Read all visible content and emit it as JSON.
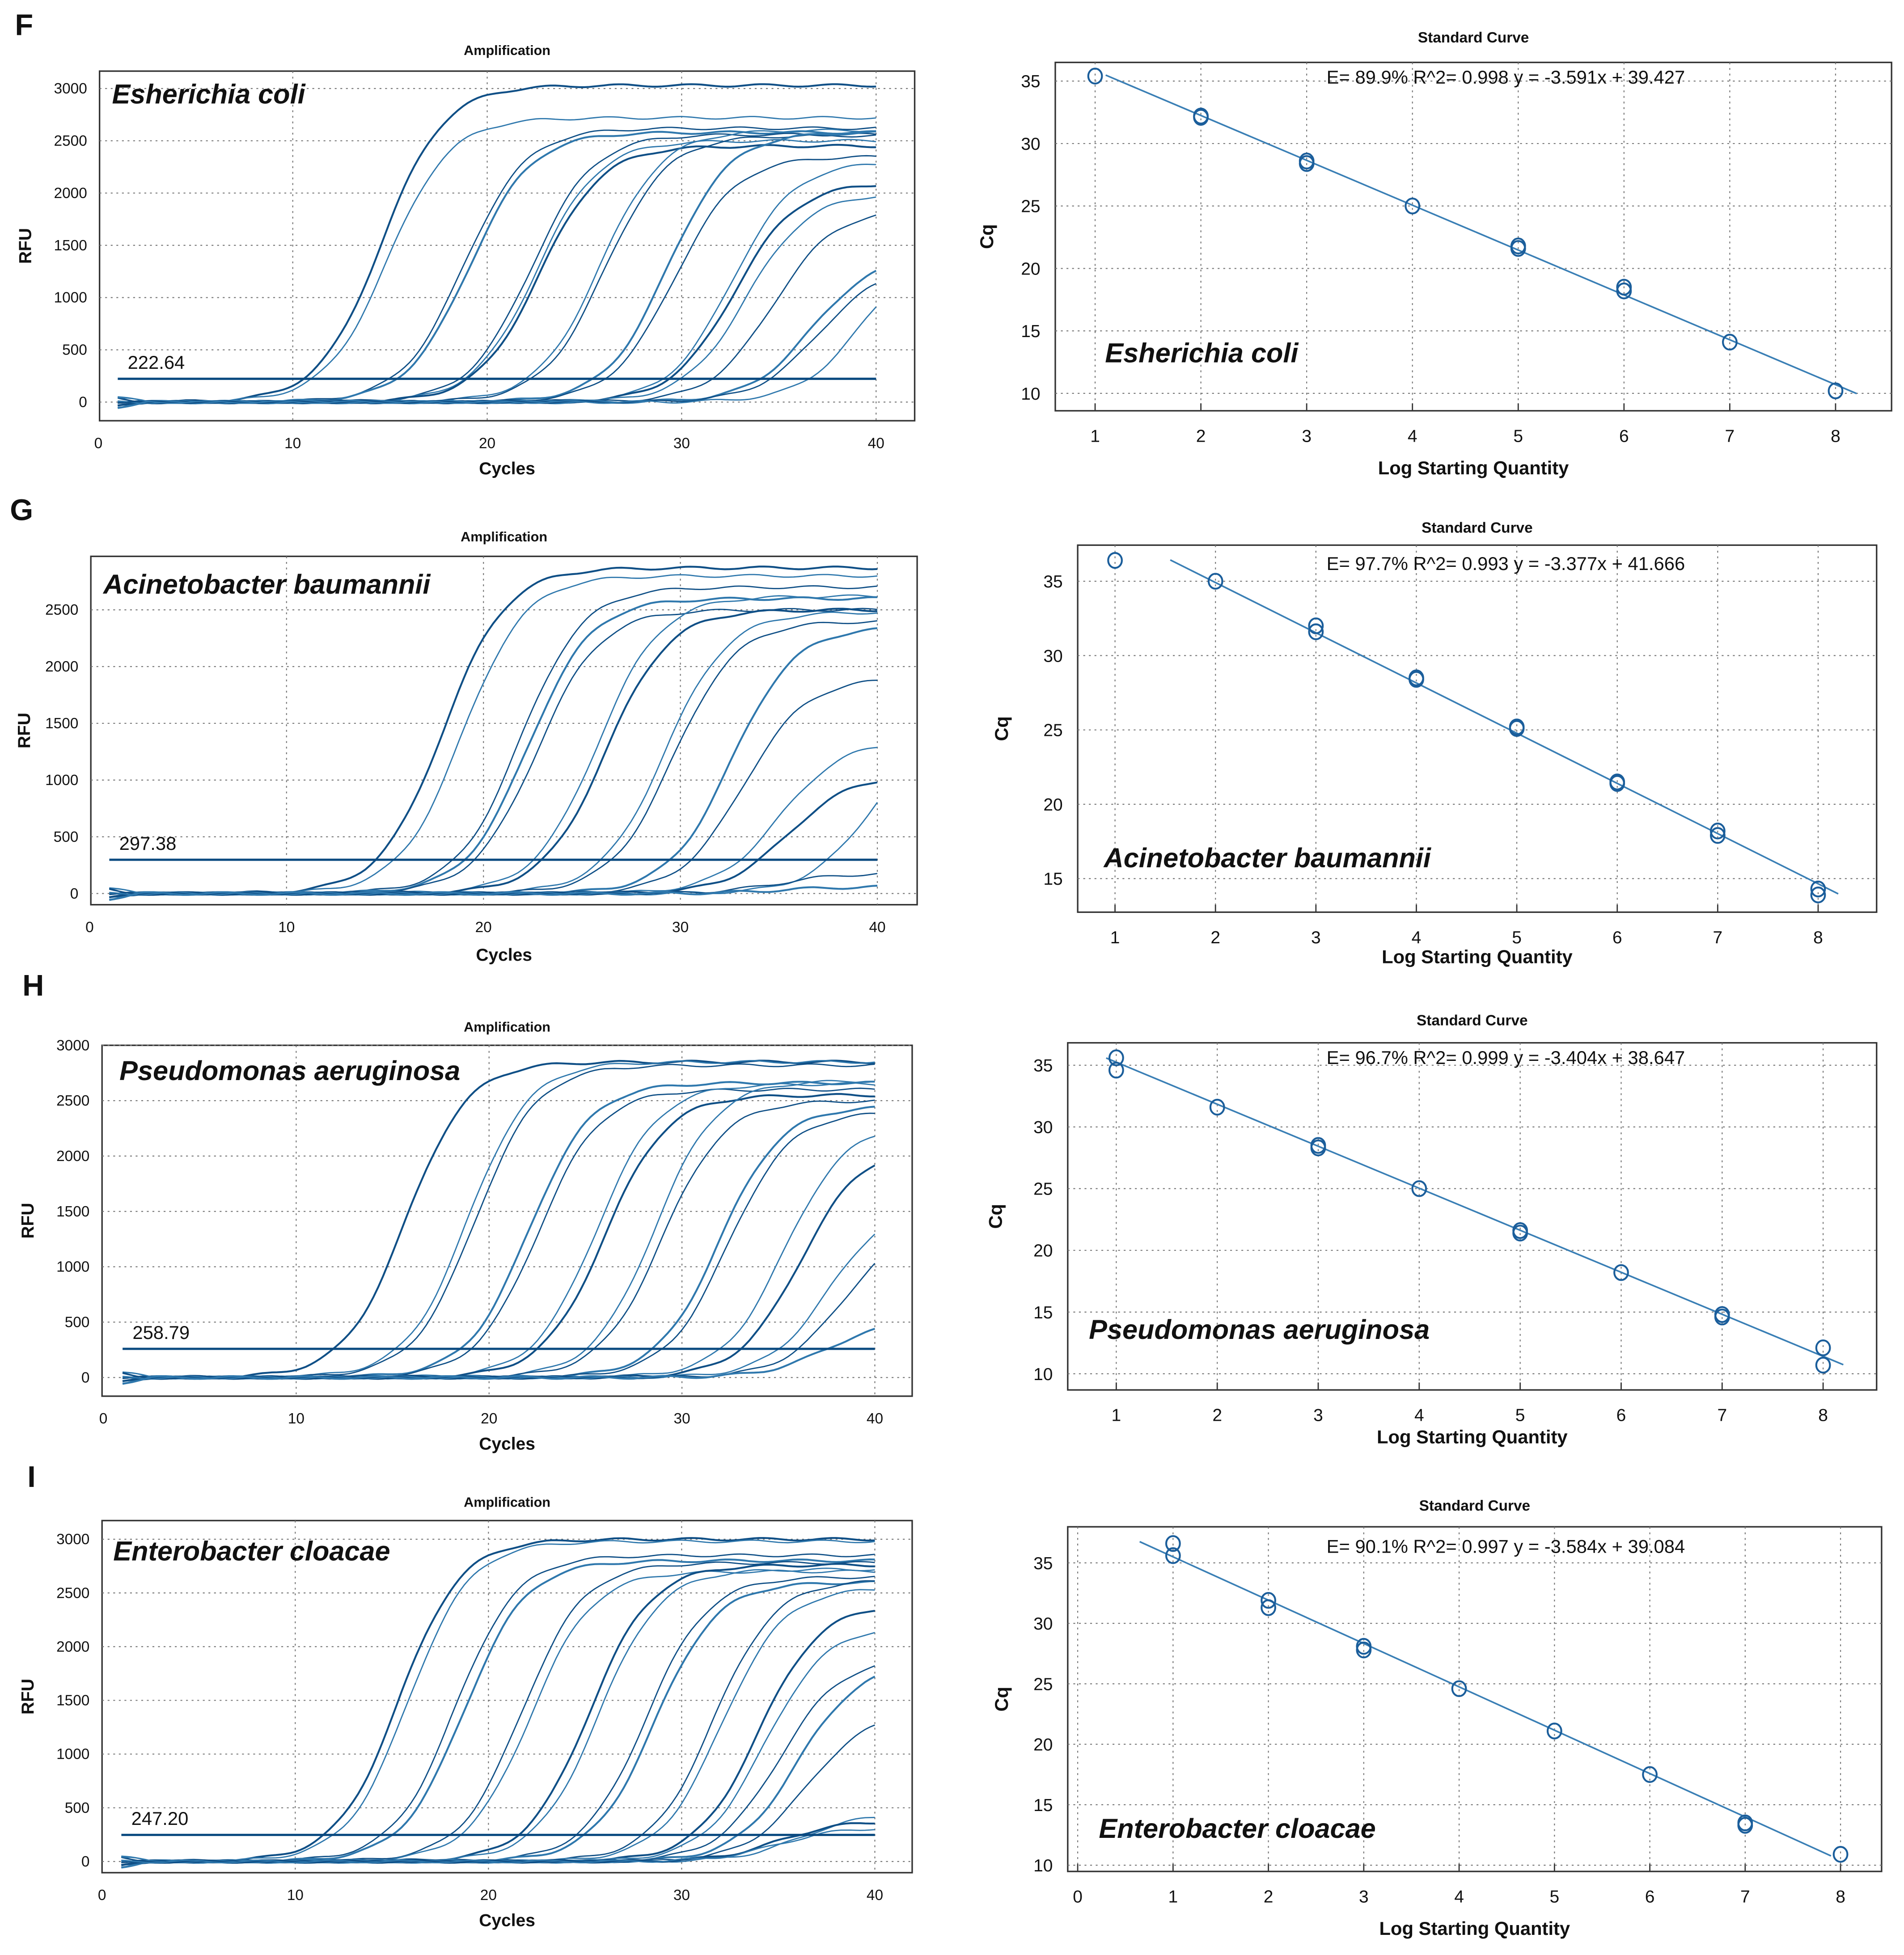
{
  "figure_panels": [
    "F",
    "G",
    "H",
    "I"
  ],
  "chart_data": [
    {
      "panel": "F",
      "type": "line",
      "title": "Amplification",
      "organism": "Esherichia coli",
      "xlabel": "Cycles",
      "ylabel": "RFU",
      "xlim": [
        0,
        40
      ],
      "xticks": [
        0,
        10,
        20,
        30,
        40
      ],
      "yticks": [
        0,
        500,
        1000,
        1500,
        2000,
        2500,
        3000
      ],
      "threshold": 222.64,
      "threshold_label": "222.64",
      "curves": [
        {
          "ct": 10.5,
          "plateau_rfu": 3030
        },
        {
          "ct": 11,
          "plateau_rfu": 2720
        },
        {
          "ct": 15,
          "plateau_rfu": 2620
        },
        {
          "ct": 15.3,
          "plateau_rfu": 2580
        },
        {
          "ct": 18.5,
          "plateau_rfu": 2560
        },
        {
          "ct": 18.8,
          "plateau_rfu": 2500
        },
        {
          "ct": 19,
          "plateau_rfu": 2450
        },
        {
          "ct": 22,
          "plateau_rfu": 2600
        },
        {
          "ct": 22.3,
          "plateau_rfu": 2550
        },
        {
          "ct": 25.5,
          "plateau_rfu": 2580
        },
        {
          "ct": 26,
          "plateau_rfu": 2350
        },
        {
          "ct": 29,
          "plateau_rfu": 2300
        },
        {
          "ct": 29.3,
          "plateau_rfu": 2100
        },
        {
          "ct": 30,
          "plateau_rfu": 2000
        },
        {
          "ct": 31.5,
          "plateau_rfu": 1850
        },
        {
          "ct": 34,
          "plateau_rfu": 1400
        },
        {
          "ct": 34.5,
          "plateau_rfu": 1300
        },
        {
          "ct": 36.5,
          "plateau_rfu": 1500
        }
      ]
    },
    {
      "panel": "F",
      "type": "scatter",
      "title": "Standard Curve",
      "organism": "Esherichia coli",
      "xlabel": "Log Starting Quantity",
      "ylabel": "Cq",
      "xticks": [
        1,
        2,
        3,
        4,
        5,
        6,
        7,
        8
      ],
      "yticks": [
        10,
        15,
        20,
        25,
        30,
        35
      ],
      "equation": "E= 89.9% R^2= 0.998  y = -3.591x + 39.427",
      "efficiency_pct": 89.9,
      "r2": 0.998,
      "slope": -3.591,
      "intercept": 39.427,
      "fit_x_range": [
        1.1,
        8.2
      ],
      "points": [
        [
          1,
          35.4
        ],
        [
          2,
          32.2
        ],
        [
          2,
          32.1
        ],
        [
          3,
          28.6
        ],
        [
          3,
          28.4
        ],
        [
          4,
          25.0
        ],
        [
          5,
          21.8
        ],
        [
          5,
          21.6
        ],
        [
          6,
          18.5
        ],
        [
          6,
          18.2
        ],
        [
          7,
          14.1
        ],
        [
          8,
          10.2
        ]
      ]
    },
    {
      "panel": "G",
      "type": "line",
      "title": "Amplification",
      "organism": "Acinetobacter baumannii",
      "xlabel": "Cycles",
      "ylabel": "RFU",
      "xlim": [
        0,
        40
      ],
      "xticks": [
        0,
        10,
        20,
        30,
        40
      ],
      "yticks": [
        0,
        500,
        1000,
        1500,
        2000,
        2500
      ],
      "threshold": 297.38,
      "threshold_label": "297.38",
      "curves": [
        {
          "ct": 14.5,
          "plateau_rfu": 2870
        },
        {
          "ct": 15.5,
          "plateau_rfu": 2800
        },
        {
          "ct": 18.5,
          "plateau_rfu": 2700
        },
        {
          "ct": 19,
          "plateau_rfu": 2600
        },
        {
          "ct": 19.5,
          "plateau_rfu": 2500
        },
        {
          "ct": 22.5,
          "plateau_rfu": 2620
        },
        {
          "ct": 23,
          "plateau_rfu": 2500
        },
        {
          "ct": 26,
          "plateau_rfu": 2480
        },
        {
          "ct": 26.5,
          "plateau_rfu": 2400
        },
        {
          "ct": 29.5,
          "plateau_rfu": 2350
        },
        {
          "ct": 30.5,
          "plateau_rfu": 1900
        },
        {
          "ct": 33,
          "plateau_rfu": 1350
        },
        {
          "ct": 34,
          "plateau_rfu": 1050
        },
        {
          "ct": 37.5,
          "plateau_rfu": 1500
        },
        {
          "ct": null,
          "plateau_rfu": 180
        },
        {
          "ct": null,
          "plateau_rfu": 60
        }
      ]
    },
    {
      "panel": "G",
      "type": "scatter",
      "title": "Standard Curve",
      "organism": "Acinetobacter baumannii",
      "xlabel": "Log Starting Quantity",
      "ylabel": "Cq",
      "xticks": [
        1,
        2,
        3,
        4,
        5,
        6,
        7,
        8
      ],
      "yticks": [
        15,
        20,
        25,
        30,
        35
      ],
      "equation": "E= 97.7% R^2= 0.993  y = -3.377x + 41.666",
      "efficiency_pct": 97.7,
      "r2": 0.993,
      "slope": -3.377,
      "intercept": 41.666,
      "fit_x_range": [
        1.55,
        8.2
      ],
      "points": [
        [
          1,
          36.4
        ],
        [
          2,
          35.0
        ],
        [
          3,
          32.0
        ],
        [
          3,
          31.6
        ],
        [
          4,
          28.5
        ],
        [
          4,
          28.4
        ],
        [
          5,
          25.2
        ],
        [
          5,
          25.1
        ],
        [
          6,
          21.5
        ],
        [
          6,
          21.4
        ],
        [
          7,
          18.2
        ],
        [
          7,
          17.9
        ],
        [
          8,
          14.3
        ],
        [
          8,
          13.9
        ]
      ]
    },
    {
      "panel": "H",
      "type": "line",
      "title": "Amplification",
      "organism": "Pseudomonas aeruginosa",
      "xlabel": "Cycles",
      "ylabel": "RFU",
      "xlim": [
        0,
        40
      ],
      "xticks": [
        0,
        10,
        20,
        30,
        40
      ],
      "yticks": [
        0,
        500,
        1000,
        1500,
        2000,
        2500,
        3000
      ],
      "threshold": 258.79,
      "threshold_label": "258.79",
      "curves": [
        {
          "ct": 12,
          "plateau_rfu": 2850
        },
        {
          "ct": 15.2,
          "plateau_rfu": 2850
        },
        {
          "ct": 15.6,
          "plateau_rfu": 2820
        },
        {
          "ct": 18.5,
          "plateau_rfu": 2660
        },
        {
          "ct": 19,
          "plateau_rfu": 2600
        },
        {
          "ct": 22,
          "plateau_rfu": 2650
        },
        {
          "ct": 22.5,
          "plateau_rfu": 2550
        },
        {
          "ct": 25,
          "plateau_rfu": 2680
        },
        {
          "ct": 25.5,
          "plateau_rfu": 2500
        },
        {
          "ct": 28.5,
          "plateau_rfu": 2450
        },
        {
          "ct": 29,
          "plateau_rfu": 2400
        },
        {
          "ct": 32,
          "plateau_rfu": 2300
        },
        {
          "ct": 33,
          "plateau_rfu": 2100
        },
        {
          "ct": 35,
          "plateau_rfu": 1600
        },
        {
          "ct": 36,
          "plateau_rfu": 1400
        },
        {
          "ct": 37.5,
          "plateau_rfu": 520
        }
      ]
    },
    {
      "panel": "H",
      "type": "scatter",
      "title": "Standard Curve",
      "organism": "Pseudomonas aeruginosa",
      "xlabel": "Log Starting Quantity",
      "ylabel": "Cq",
      "xticks": [
        1,
        2,
        3,
        4,
        5,
        6,
        7,
        8
      ],
      "yticks": [
        10,
        15,
        20,
        25,
        30,
        35
      ],
      "equation": "E= 96.7% R^2= 0.999  y = -3.404x + 38.647",
      "efficiency_pct": 96.7,
      "r2": 0.999,
      "slope": -3.404,
      "intercept": 38.647,
      "fit_x_range": [
        0.9,
        8.2
      ],
      "points": [
        [
          1,
          35.6
        ],
        [
          1,
          34.6
        ],
        [
          2,
          31.6
        ],
        [
          3,
          28.5
        ],
        [
          3,
          28.3
        ],
        [
          4,
          25.0
        ],
        [
          5,
          21.6
        ],
        [
          5,
          21.4
        ],
        [
          6,
          18.2
        ],
        [
          7,
          14.8
        ],
        [
          7,
          14.6
        ],
        [
          8,
          12.1
        ],
        [
          8,
          10.7
        ]
      ]
    },
    {
      "panel": "I",
      "type": "line",
      "title": "Amplification",
      "organism": "Enterobacter cloacae",
      "xlabel": "Cycles",
      "ylabel": "RFU",
      "xlim": [
        0,
        40
      ],
      "xticks": [
        0,
        10,
        20,
        30,
        40
      ],
      "yticks": [
        0,
        500,
        1000,
        1500,
        2000,
        2500,
        3000
      ],
      "threshold": 247.2,
      "threshold_label": "247.20",
      "curves": [
        {
          "ct": 11.5,
          "plateau_rfu": 3000
        },
        {
          "ct": 12,
          "plateau_rfu": 2980
        },
        {
          "ct": 14.5,
          "plateau_rfu": 2850
        },
        {
          "ct": 15,
          "plateau_rfu": 2800
        },
        {
          "ct": 18,
          "plateau_rfu": 2780
        },
        {
          "ct": 18.5,
          "plateau_rfu": 2700
        },
        {
          "ct": 21.5,
          "plateau_rfu": 2760
        },
        {
          "ct": 22,
          "plateau_rfu": 2720
        },
        {
          "ct": 24.5,
          "plateau_rfu": 2650
        },
        {
          "ct": 25,
          "plateau_rfu": 2600
        },
        {
          "ct": 28,
          "plateau_rfu": 2620
        },
        {
          "ct": 28.5,
          "plateau_rfu": 2550
        },
        {
          "ct": 30.5,
          "plateau_rfu": 2400
        },
        {
          "ct": 31,
          "plateau_rfu": 2200
        },
        {
          "ct": 32,
          "plateau_rfu": 1900
        },
        {
          "ct": 33,
          "plateau_rfu": 1850
        },
        {
          "ct": 34,
          "plateau_rfu": 1400
        },
        {
          "ct": 36.5,
          "plateau_rfu": 450
        },
        {
          "ct": null,
          "plateau_rfu": 380
        },
        {
          "ct": null,
          "plateau_rfu": 320
        }
      ]
    },
    {
      "panel": "I",
      "type": "scatter",
      "title": "Standard Curve",
      "organism": "Enterobacter cloacae",
      "xlabel": "Log Starting Quantity",
      "ylabel": "Cq",
      "xticks": [
        0,
        1,
        2,
        3,
        4,
        5,
        6,
        7,
        8
      ],
      "yticks": [
        10,
        15,
        20,
        25,
        30,
        35
      ],
      "equation": "E= 90.1% R^2= 0.997  y = -3.584x + 39.084",
      "efficiency_pct": 90.1,
      "r2": 0.997,
      "slope": -3.584,
      "intercept": 39.084,
      "fit_x_range": [
        0.65,
        7.9
      ],
      "points": [
        [
          1,
          36.6
        ],
        [
          1,
          35.6
        ],
        [
          2,
          31.9
        ],
        [
          2,
          31.3
        ],
        [
          3,
          28.1
        ],
        [
          3,
          27.8
        ],
        [
          4,
          24.6
        ],
        [
          5,
          21.1
        ],
        [
          6,
          17.5
        ],
        [
          7,
          13.5
        ],
        [
          7,
          13.3
        ],
        [
          8,
          10.9
        ]
      ]
    }
  ]
}
